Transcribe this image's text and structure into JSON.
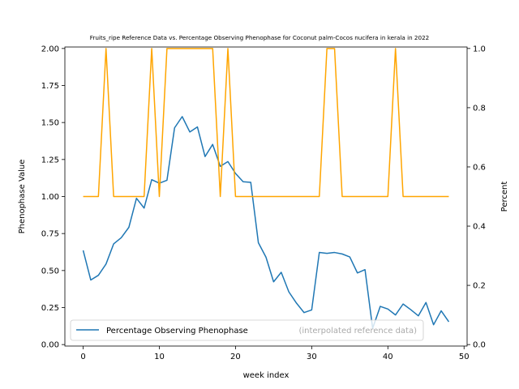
{
  "chart_data": {
    "type": "line",
    "title": "Fruits_ripe Reference Data vs. Percentage Observing Phenophase for Coconut palm-Cocos nucifera in kerala in 2022",
    "xlabel": "week index",
    "ylabel_left": "Phenophase Value",
    "ylabel_right": "Percent",
    "xlim": [
      -2.4,
      50.4
    ],
    "ylim_left": [
      -0.01,
      2.01
    ],
    "ylim_right": [
      -0.005,
      1.005
    ],
    "x_ticks": [
      0,
      10,
      20,
      30,
      40,
      50
    ],
    "y_ticks_left": [
      "0.00",
      "0.25",
      "0.50",
      "0.75",
      "1.00",
      "1.25",
      "1.50",
      "1.75",
      "2.00"
    ],
    "y_ticks_right": [
      "0.0",
      "0.2",
      "0.4",
      "0.6",
      "0.8",
      "1.0"
    ],
    "legend": {
      "placement": "lower-left",
      "entries": [
        "Percentage Observing Phenophase",
        "(interpolated reference data)"
      ]
    },
    "series": [
      {
        "name": "Percentage Observing Phenophase",
        "axis": "right",
        "color": "#1f77b4",
        "x": [
          0,
          1,
          2,
          3,
          4,
          5,
          6,
          7,
          8,
          9,
          10,
          11,
          12,
          13,
          14,
          15,
          16,
          17,
          18,
          19,
          20,
          21,
          22,
          23,
          24,
          25,
          26,
          27,
          28,
          29,
          30,
          31,
          32,
          33,
          34,
          35,
          36,
          37,
          38,
          39,
          40,
          41,
          42,
          43,
          44,
          45,
          46,
          47,
          48
        ],
        "values": [
          0.318,
          0.218,
          0.234,
          0.272,
          0.34,
          0.361,
          0.396,
          0.494,
          0.461,
          0.557,
          0.545,
          0.555,
          0.732,
          0.77,
          0.718,
          0.735,
          0.635,
          0.676,
          0.602,
          0.618,
          0.578,
          0.55,
          0.548,
          0.344,
          0.295,
          0.212,
          0.244,
          0.178,
          0.14,
          0.108,
          0.117,
          0.311,
          0.308,
          0.311,
          0.306,
          0.296,
          0.242,
          0.253,
          0.055,
          0.129,
          0.12,
          0.1,
          0.137,
          0.118,
          0.097,
          0.142,
          0.067,
          0.114,
          0.077
        ]
      },
      {
        "name": "(interpolated reference data)",
        "axis": "left",
        "color": "#ffa500",
        "x": [
          0,
          1,
          2,
          3,
          4,
          5,
          6,
          7,
          8,
          9,
          10,
          11,
          12,
          13,
          14,
          15,
          16,
          17,
          18,
          19,
          20,
          21,
          22,
          23,
          24,
          25,
          26,
          27,
          28,
          29,
          30,
          31,
          32,
          33,
          34,
          35,
          36,
          37,
          38,
          39,
          40,
          41,
          42,
          43,
          44,
          45,
          46,
          47,
          48
        ],
        "values": [
          1,
          1,
          1,
          2,
          1,
          1,
          1,
          1,
          1,
          2,
          1,
          2,
          2,
          2,
          2,
          2,
          2,
          2,
          1,
          2,
          1,
          1,
          1,
          1,
          1,
          1,
          1,
          1,
          1,
          1,
          1,
          1,
          2,
          2,
          1,
          1,
          1,
          1,
          1,
          1,
          1,
          2,
          1,
          1,
          1,
          1,
          1,
          1,
          1
        ]
      }
    ]
  }
}
